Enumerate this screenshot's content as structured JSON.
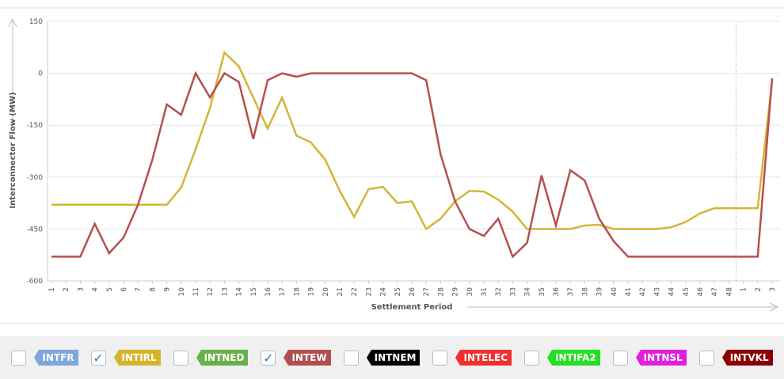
{
  "chart_data": {
    "type": "line",
    "x_label": "Settlement Period",
    "y_label": "Interconnector Flow (MW)",
    "categories": [
      "1",
      "2",
      "3",
      "4",
      "5",
      "6",
      "7",
      "8",
      "9",
      "10",
      "11",
      "12",
      "13",
      "14",
      "15",
      "16",
      "17",
      "18",
      "19",
      "20",
      "21",
      "22",
      "23",
      "24",
      "25",
      "26",
      "27",
      "28",
      "29",
      "30",
      "31",
      "32",
      "33",
      "34",
      "35",
      "36",
      "37",
      "38",
      "39",
      "40",
      "41",
      "42",
      "43",
      "44",
      "45",
      "46",
      "47",
      "48",
      "1",
      "2",
      "3"
    ],
    "ylim": [
      -600,
      150
    ],
    "yticks": [
      150,
      0,
      -150,
      -300,
      -450,
      -600
    ],
    "grid": true,
    "series": [
      {
        "color": "#d4b536",
        "values": [
          -380,
          -380,
          -380,
          -380,
          -380,
          -380,
          -380,
          -380,
          -380,
          -330,
          -220,
          -100,
          60,
          20,
          -70,
          -160,
          -70,
          -180,
          -200,
          -250,
          -340,
          -415,
          -335,
          -328,
          -375,
          -370,
          -450,
          -420,
          -370,
          -340,
          -342,
          -365,
          -400,
          -450,
          -450,
          -450,
          -450,
          -440,
          -438,
          -450,
          -450,
          -450,
          -450,
          -445,
          -430,
          -405,
          -390,
          -390,
          -390,
          -390,
          -20
        ]
      },
      {
        "color": "#b5504f",
        "values": [
          -530,
          -530,
          -530,
          -435,
          -520,
          -475,
          -380,
          -250,
          -90,
          -120,
          0,
          -70,
          0,
          -25,
          -190,
          -20,
          0,
          -10,
          0,
          0,
          0,
          0,
          0,
          0,
          0,
          0,
          -20,
          -235,
          -370,
          -450,
          -470,
          -420,
          -530,
          -490,
          -295,
          -440,
          -280,
          -310,
          -420,
          -485,
          -530,
          -530,
          -530,
          -530,
          -530,
          -530,
          -530,
          -530,
          -530,
          -530,
          -15
        ]
      }
    ],
    "legend": [
      {
        "name": "INTFR",
        "color": "#7fa7de",
        "checked": false
      },
      {
        "name": "INTIRL",
        "color": "#d4b52a",
        "checked": true
      },
      {
        "name": "INTNED",
        "color": "#6ab04c",
        "checked": false
      },
      {
        "name": "INTEW",
        "color": "#b0504e",
        "checked": true
      },
      {
        "name": "INTNEM",
        "color": "#000000",
        "checked": false
      },
      {
        "name": "INTELEC",
        "color": "#f03030",
        "checked": false
      },
      {
        "name": "INTIFA2",
        "color": "#22e022",
        "checked": false
      },
      {
        "name": "INTNSL",
        "color": "#e020e0",
        "checked": false
      },
      {
        "name": "INTVKL",
        "color": "#8b0000",
        "checked": false
      }
    ]
  }
}
